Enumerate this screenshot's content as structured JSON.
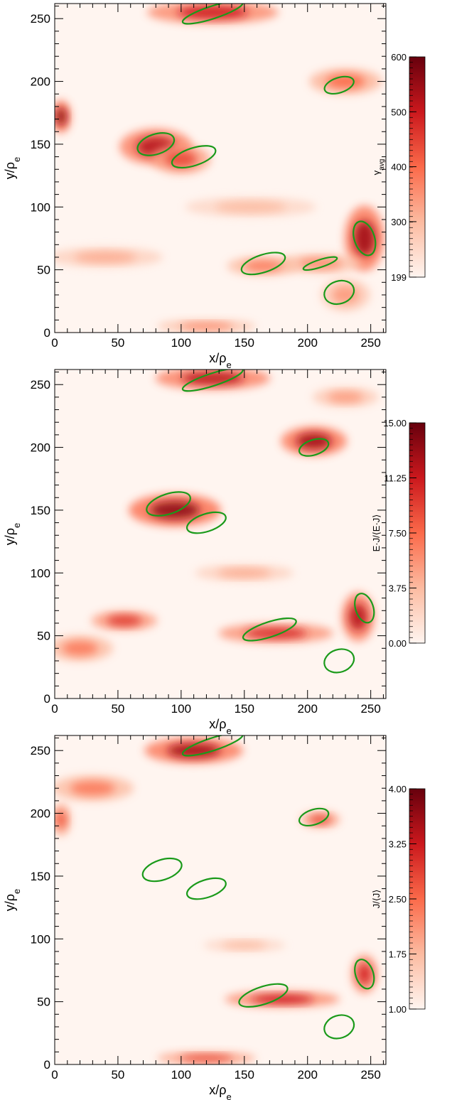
{
  "chart_data": [
    {
      "type": "heatmap",
      "x_label": "x/ρ",
      "x_label_sub": "e",
      "y_label": "y/ρ",
      "y_label_sub": "e",
      "xlim": [
        0,
        262
      ],
      "ylim": [
        0,
        262
      ],
      "x_ticks": [
        0,
        50,
        100,
        150,
        200,
        250
      ],
      "y_ticks": [
        0,
        50,
        100,
        150,
        200,
        250
      ],
      "x_tick_labels": [
        "0",
        "50",
        "100",
        "150",
        "200",
        "250"
      ],
      "y_tick_labels": [
        "0",
        "50",
        "100",
        "150",
        "200",
        "250"
      ],
      "colorbar": {
        "title": "γ",
        "title_sub": "avg",
        "range": [
          199,
          600
        ],
        "ticks": [
          199,
          300,
          400,
          500,
          600
        ],
        "tick_labels": [
          "199",
          "300",
          "400",
          "500",
          "600"
        ]
      },
      "colormap": [
        "#fff5f0",
        "#fcbba1",
        "#fb6a4a",
        "#cb181d",
        "#67000d"
      ],
      "contour_color": "#1a9a1a",
      "blobs": [
        {
          "x": 80,
          "y": 148,
          "rx": 22,
          "ry": 11,
          "v": 0.8
        },
        {
          "x": 100,
          "y": 138,
          "rx": 18,
          "ry": 9,
          "v": 0.6
        },
        {
          "x": 125,
          "y": 255,
          "rx": 40,
          "ry": 7,
          "v": 0.75
        },
        {
          "x": 230,
          "y": 200,
          "rx": 22,
          "ry": 8,
          "v": 0.5
        },
        {
          "x": 245,
          "y": 75,
          "rx": 12,
          "ry": 20,
          "v": 0.85
        },
        {
          "x": 5,
          "y": 172,
          "rx": 6,
          "ry": 10,
          "v": 0.9
        },
        {
          "x": 210,
          "y": 55,
          "rx": 25,
          "ry": 6,
          "v": 0.4
        },
        {
          "x": 165,
          "y": 53,
          "rx": 22,
          "ry": 6,
          "v": 0.45
        },
        {
          "x": 155,
          "y": 100,
          "rx": 40,
          "ry": 6,
          "v": 0.25
        },
        {
          "x": 40,
          "y": 60,
          "rx": 35,
          "ry": 6,
          "v": 0.3
        },
        {
          "x": 120,
          "y": 5,
          "rx": 30,
          "ry": 4,
          "v": 0.4
        },
        {
          "x": 230,
          "y": 30,
          "rx": 15,
          "ry": 10,
          "v": 0.35
        }
      ],
      "contours": [
        {
          "x": 80,
          "y": 150,
          "rx": 15,
          "ry": 8
        },
        {
          "x": 110,
          "y": 140,
          "rx": 18,
          "ry": 7
        },
        {
          "x": 225,
          "y": 197,
          "rx": 12,
          "ry": 6
        },
        {
          "x": 165,
          "y": 55,
          "rx": 18,
          "ry": 7
        },
        {
          "x": 245,
          "y": 75,
          "rx": 8,
          "ry": 14
        },
        {
          "x": 125,
          "y": 255,
          "rx": 25,
          "ry": 5
        },
        {
          "x": 225,
          "y": 32,
          "rx": 12,
          "ry": 9
        },
        {
          "x": 210,
          "y": 55,
          "rx": 14,
          "ry": 3
        }
      ]
    },
    {
      "type": "heatmap",
      "x_label": "x/ρ",
      "x_label_sub": "e",
      "y_label": "y/ρ",
      "y_label_sub": "e",
      "xlim": [
        0,
        262
      ],
      "ylim": [
        0,
        262
      ],
      "x_ticks": [
        0,
        50,
        100,
        150,
        200,
        250
      ],
      "y_ticks": [
        0,
        50,
        100,
        150,
        200,
        250
      ],
      "x_tick_labels": [
        "0",
        "50",
        "100",
        "150",
        "200",
        "250"
      ],
      "y_tick_labels": [
        "0",
        "50",
        "100",
        "150",
        "200",
        "250"
      ],
      "colorbar": {
        "title": "E·J/⟨E·J⟩",
        "title_sub": "",
        "range": [
          0,
          15
        ],
        "ticks": [
          0,
          3.75,
          7.5,
          11.25,
          15
        ],
        "tick_labels": [
          "0.00",
          "3.75",
          "7.50",
          "11.25",
          "15.00"
        ]
      },
      "colormap": [
        "#fff5f0",
        "#fcbba1",
        "#fb6a4a",
        "#cb181d",
        "#67000d"
      ],
      "contour_color": "#1a9a1a",
      "blobs": [
        {
          "x": 95,
          "y": 150,
          "rx": 28,
          "ry": 10,
          "v": 0.9
        },
        {
          "x": 205,
          "y": 205,
          "rx": 20,
          "ry": 9,
          "v": 0.85
        },
        {
          "x": 125,
          "y": 255,
          "rx": 35,
          "ry": 7,
          "v": 0.8
        },
        {
          "x": 240,
          "y": 65,
          "rx": 10,
          "ry": 15,
          "v": 0.8
        },
        {
          "x": 175,
          "y": 52,
          "rx": 35,
          "ry": 6,
          "v": 0.7
        },
        {
          "x": 55,
          "y": 62,
          "rx": 20,
          "ry": 6,
          "v": 0.65
        },
        {
          "x": 20,
          "y": 40,
          "rx": 20,
          "ry": 8,
          "v": 0.45
        },
        {
          "x": 150,
          "y": 100,
          "rx": 30,
          "ry": 5,
          "v": 0.3
        },
        {
          "x": 230,
          "y": 240,
          "rx": 20,
          "ry": 6,
          "v": 0.35
        }
      ],
      "contours": [
        {
          "x": 90,
          "y": 155,
          "rx": 18,
          "ry": 8
        },
        {
          "x": 120,
          "y": 140,
          "rx": 16,
          "ry": 7
        },
        {
          "x": 205,
          "y": 200,
          "rx": 12,
          "ry": 6
        },
        {
          "x": 170,
          "y": 55,
          "rx": 22,
          "ry": 6
        },
        {
          "x": 245,
          "y": 72,
          "rx": 7,
          "ry": 12
        },
        {
          "x": 125,
          "y": 254,
          "rx": 25,
          "ry": 5
        },
        {
          "x": 225,
          "y": 30,
          "rx": 12,
          "ry": 9
        }
      ]
    },
    {
      "type": "heatmap",
      "x_label": "x/ρ",
      "x_label_sub": "e",
      "y_label": "y/ρ",
      "y_label_sub": "e",
      "xlim": [
        0,
        262
      ],
      "ylim": [
        0,
        262
      ],
      "x_ticks": [
        0,
        50,
        100,
        150,
        200,
        250
      ],
      "y_ticks": [
        0,
        50,
        100,
        150,
        200,
        250
      ],
      "x_tick_labels": [
        "0",
        "50",
        "100",
        "150",
        "200",
        "250"
      ],
      "y_tick_labels": [
        "0",
        "50",
        "100",
        "150",
        "200",
        "250"
      ],
      "colorbar": {
        "title": "J/⟨J⟩",
        "title_sub": "",
        "range": [
          1,
          4
        ],
        "ticks": [
          1,
          1.75,
          2.5,
          3.25,
          4
        ],
        "tick_labels": [
          "1.00",
          "1.75",
          "2.50",
          "3.25",
          "4.00"
        ]
      },
      "colormap": [
        "#fff5f0",
        "#fcbba1",
        "#fb6a4a",
        "#cb181d",
        "#67000d"
      ],
      "contour_color": "#1a9a1a",
      "blobs": [
        {
          "x": 110,
          "y": 250,
          "rx": 30,
          "ry": 8,
          "v": 0.85
        },
        {
          "x": 180,
          "y": 52,
          "rx": 35,
          "ry": 5,
          "v": 0.75
        },
        {
          "x": 245,
          "y": 72,
          "rx": 8,
          "ry": 12,
          "v": 0.7
        },
        {
          "x": 210,
          "y": 195,
          "rx": 12,
          "ry": 5,
          "v": 0.6
        },
        {
          "x": 30,
          "y": 220,
          "rx": 25,
          "ry": 8,
          "v": 0.45
        },
        {
          "x": 120,
          "y": 5,
          "rx": 30,
          "ry": 4,
          "v": 0.6
        },
        {
          "x": 5,
          "y": 195,
          "rx": 6,
          "ry": 10,
          "v": 0.55
        },
        {
          "x": 150,
          "y": 95,
          "rx": 25,
          "ry": 4,
          "v": 0.25
        }
      ],
      "contours": [
        {
          "x": 85,
          "y": 155,
          "rx": 16,
          "ry": 8
        },
        {
          "x": 120,
          "y": 140,
          "rx": 16,
          "ry": 7
        },
        {
          "x": 205,
          "y": 197,
          "rx": 12,
          "ry": 6
        },
        {
          "x": 165,
          "y": 55,
          "rx": 20,
          "ry": 7
        },
        {
          "x": 245,
          "y": 72,
          "rx": 7,
          "ry": 12
        },
        {
          "x": 125,
          "y": 255,
          "rx": 25,
          "ry": 5
        },
        {
          "x": 225,
          "y": 30,
          "rx": 12,
          "ry": 9
        }
      ]
    }
  ]
}
